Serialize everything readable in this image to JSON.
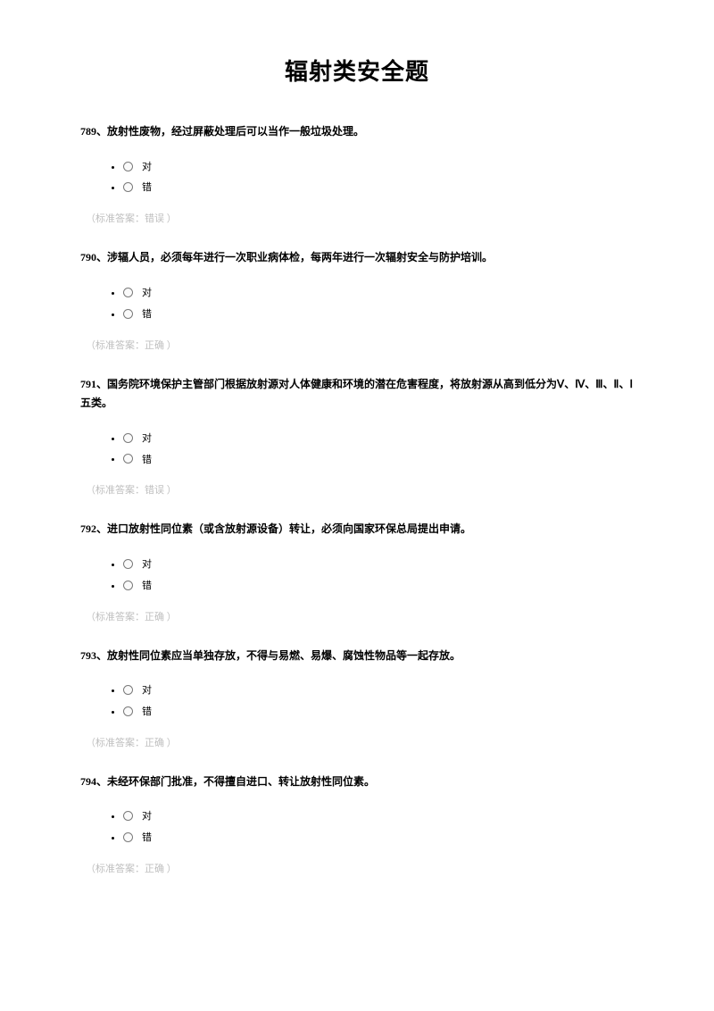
{
  "title": "辐射类安全题",
  "option_true_label": "对",
  "option_false_label": "错",
  "answer_prefix": "（标准答案：",
  "answer_suffix": " ）",
  "answer_correct": "正确",
  "answer_wrong": "错误",
  "colors": {
    "text": "#000000",
    "background": "#ffffff",
    "answer_text": "#bfbfbf",
    "radio_border": "#7a7a7a"
  },
  "fonts": {
    "title_size_pt": 26,
    "question_size_pt": 12,
    "option_size_pt": 11,
    "answer_size_pt": 11
  },
  "questions": [
    {
      "number": "789",
      "text": "789、放射性废物，经过屏蔽处理后可以当作一般垃圾处理。",
      "answer": "错误"
    },
    {
      "number": "790",
      "text": "790、涉辐人员，必须每年进行一次职业病体检，每两年进行一次辐射安全与防护培训。",
      "answer": "正确"
    },
    {
      "number": "791",
      "text": "791、国务院环境保护主管部门根据放射源对人体健康和环境的潜在危害程度，将放射源从高到低分为Ⅴ、Ⅳ、Ⅲ、Ⅱ、Ⅰ五类。",
      "answer": "错误"
    },
    {
      "number": "792",
      "text": "792、进口放射性同位素（或含放射源设备）转让，必须向国家环保总局提出申请。",
      "answer": "正确"
    },
    {
      "number": "793",
      "text": "793、放射性同位素应当单独存放，不得与易燃、易爆、腐蚀性物品等一起存放。",
      "answer": "正确"
    },
    {
      "number": "794",
      "text": "794、未经环保部门批准，不得擅自进口、转让放射性同位素。",
      "answer": "正确"
    }
  ]
}
